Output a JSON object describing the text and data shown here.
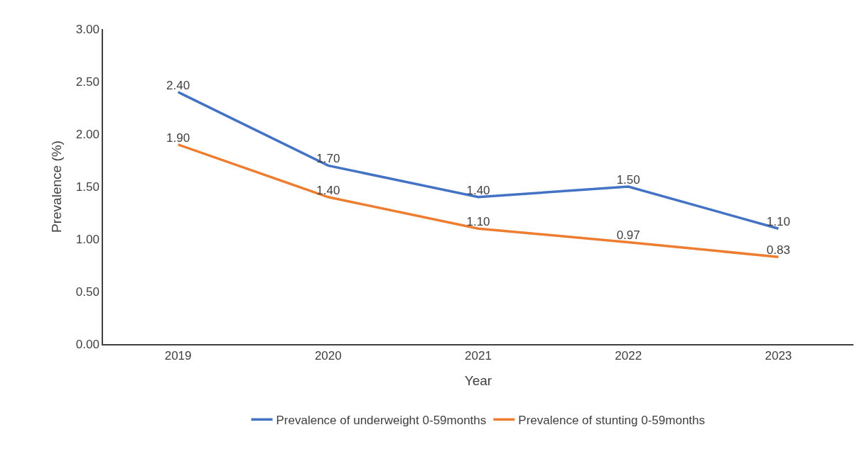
{
  "chart_data": {
    "type": "line",
    "xlabel": "Year",
    "ylabel": "Prevalence (%)",
    "categories": [
      "2019",
      "2020",
      "2021",
      "2022",
      "2023"
    ],
    "series": [
      {
        "name": "Prevalence of underweight 0-59months",
        "color": "#4472c4",
        "values": [
          2.4,
          1.7,
          1.4,
          1.5,
          1.1
        ],
        "value_labels": [
          "2.40",
          "1.70",
          "1.40",
          "1.50",
          "1.10"
        ]
      },
      {
        "name": "Prevalence of stunting 0-59months",
        "color": "#ed7d31",
        "values": [
          1.9,
          1.4,
          1.1,
          0.97,
          0.83
        ],
        "value_labels": [
          "1.90",
          "1.40",
          "1.10",
          "0.97",
          "0.83"
        ]
      }
    ],
    "ylim": [
      0,
      3
    ],
    "yticks": [
      {
        "value": 0,
        "label": "0.00"
      },
      {
        "value": 0.5,
        "label": "0.50"
      },
      {
        "value": 1,
        "label": "1.00"
      },
      {
        "value": 1.5,
        "label": "1.50"
      },
      {
        "value": 2,
        "label": "2.00"
      },
      {
        "value": 2.5,
        "label": "2.50"
      },
      {
        "value": 3,
        "label": "3.00"
      }
    ],
    "grid": false,
    "legend": "bottom",
    "marker": "none",
    "line_style": "solid"
  }
}
